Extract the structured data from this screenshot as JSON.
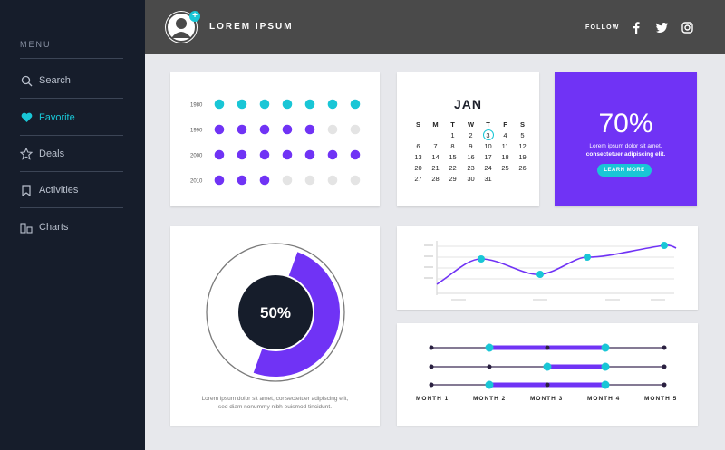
{
  "sidebar": {
    "menu_title": "MENU",
    "items": [
      {
        "label": "Search",
        "icon": "search-icon"
      },
      {
        "label": "Favorite",
        "icon": "heart-icon",
        "active": true
      },
      {
        "label": "Deals",
        "icon": "star-icon"
      },
      {
        "label": "Activities",
        "icon": "bookmark-icon"
      },
      {
        "label": "Charts",
        "icon": "bar-chart-icon"
      }
    ]
  },
  "header": {
    "brand": "LOREM IPSUM",
    "follow_label": "FOLLOW",
    "social": [
      "facebook-icon",
      "twitter-icon",
      "instagram-icon"
    ]
  },
  "colors": {
    "accent": "#19c6d6",
    "purple": "#7033f5",
    "sidebar": "#161d2b",
    "header": "#4a4a4a"
  },
  "dot_matrix": {
    "rows": [
      {
        "label": "1980",
        "cells": [
          "c",
          "c",
          "c",
          "c",
          "c",
          "c",
          "c"
        ]
      },
      {
        "label": "1990",
        "cells": [
          "p",
          "p",
          "p",
          "p",
          "p",
          "g",
          "g"
        ]
      },
      {
        "label": "2000",
        "cells": [
          "p",
          "p",
          "p",
          "p",
          "p",
          "p",
          "p"
        ]
      },
      {
        "label": "2010",
        "cells": [
          "p",
          "p",
          "p",
          "g",
          "g",
          "g",
          "g"
        ]
      }
    ]
  },
  "calendar": {
    "month": "JAN",
    "weekdays": [
      "S",
      "M",
      "T",
      "W",
      "T",
      "F",
      "S"
    ],
    "weeks": [
      [
        "",
        "",
        "1",
        "2",
        "3",
        "4",
        "5"
      ],
      [
        "6",
        "7",
        "8",
        "9",
        "10",
        "11",
        "12"
      ],
      [
        "13",
        "14",
        "15",
        "16",
        "17",
        "18",
        "19"
      ],
      [
        "20",
        "21",
        "22",
        "23",
        "24",
        "25",
        "26"
      ],
      [
        "27",
        "28",
        "29",
        "30",
        "31",
        "",
        ""
      ]
    ],
    "today": "3"
  },
  "percent_card": {
    "value": "70%",
    "line1": "Lorem ipsum dolor sit amet,",
    "line2": "consectetuer adipiscing elit.",
    "button": "LEARN MORE"
  },
  "donut": {
    "value": "50%",
    "percent": 50,
    "line1": "Lorem ipsum dolor sit amet, consectetuer adipiscing elit,",
    "line2": "sed diam nonummy nibh euismod tincidunt."
  },
  "range_chart": {
    "months": [
      "MONTH 1",
      "MONTH 2",
      "MONTH 3",
      "MONTH 4",
      "MONTH 5"
    ],
    "rows": [
      {
        "from": 2,
        "to": 4
      },
      {
        "from": 3,
        "to": 4
      },
      {
        "from": 2,
        "to": 4
      }
    ]
  }
}
